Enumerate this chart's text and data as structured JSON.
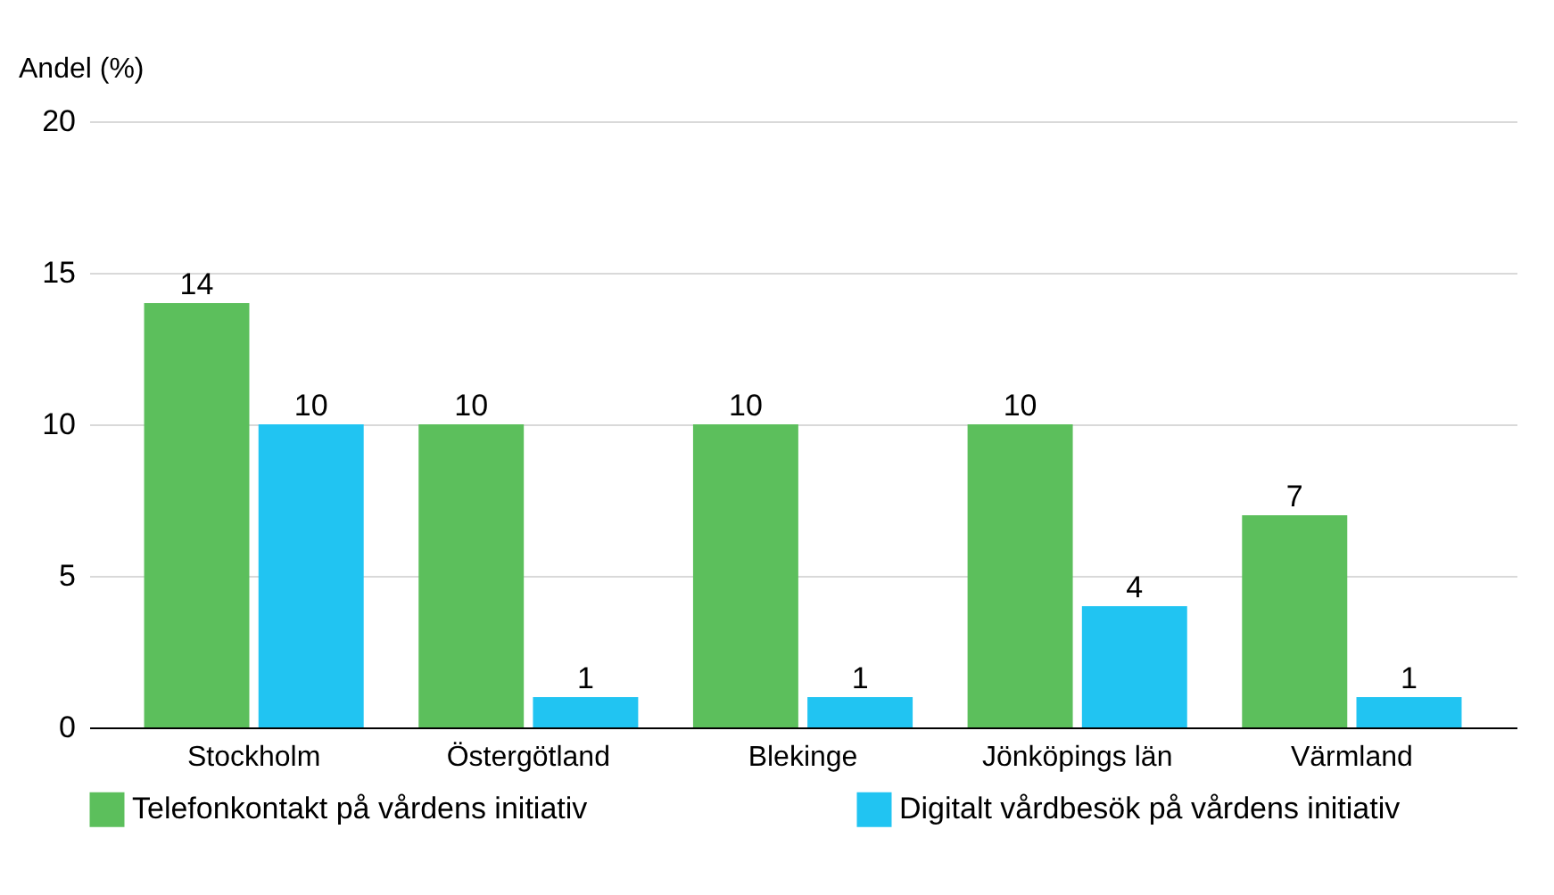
{
  "chart_data": {
    "type": "bar",
    "ylabel": "Andel (%)",
    "categories": [
      "Stockholm",
      "Östergötland",
      "Blekinge",
      "Jönköpings län",
      "Värmland"
    ],
    "series": [
      {
        "name": "Telefonkontakt på vårdens initiativ",
        "color": "#5cbf5c",
        "values": [
          14,
          10,
          10,
          10,
          7
        ]
      },
      {
        "name": "Digitalt vårdbesök på vårdens initiativ",
        "color": "#21c4f2",
        "values": [
          10,
          1,
          1,
          4,
          1
        ]
      }
    ],
    "ylim": [
      0,
      20
    ],
    "yticks": [
      0,
      5,
      10,
      15,
      20
    ],
    "grid": "y",
    "legend": "bottom",
    "data_labels": true
  }
}
